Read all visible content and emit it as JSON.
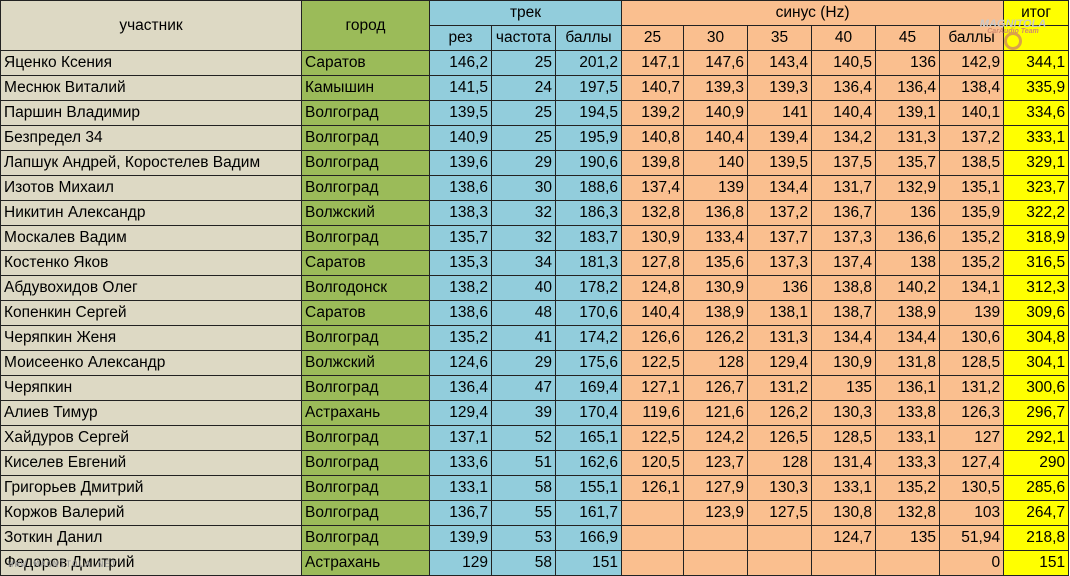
{
  "headers": {
    "participant": "участник",
    "city": "город",
    "track": "трек",
    "sine": "синус (Hz)",
    "total": "итог",
    "track_sub": [
      "рез",
      "частота",
      "баллы"
    ],
    "sine_sub": [
      "25",
      "30",
      "35",
      "40",
      "45",
      "баллы"
    ]
  },
  "rows": [
    {
      "name": "Яценко Ксения",
      "city": "Саратов",
      "track": [
        "146,2",
        "25",
        "201,2"
      ],
      "sine": [
        "147,1",
        "147,6",
        "143,4",
        "140,5",
        "136",
        "142,9"
      ],
      "total": "344,1"
    },
    {
      "name": "Меснюк Виталий",
      "city": "Камышин",
      "track": [
        "141,5",
        "24",
        "197,5"
      ],
      "sine": [
        "140,7",
        "139,3",
        "139,3",
        "136,4",
        "136,4",
        "138,4"
      ],
      "total": "335,9"
    },
    {
      "name": "Паршин Владимир",
      "city": "Волгоград",
      "track": [
        "139,5",
        "25",
        "194,5"
      ],
      "sine": [
        "139,2",
        "140,9",
        "141",
        "140,4",
        "139,1",
        "140,1"
      ],
      "total": "334,6"
    },
    {
      "name": "Безпредел 34",
      "city": "Волгоград",
      "track": [
        "140,9",
        "25",
        "195,9"
      ],
      "sine": [
        "140,8",
        "140,4",
        "139,4",
        "134,2",
        "131,3",
        "137,2"
      ],
      "total": "333,1"
    },
    {
      "name": "Лапшук Андрей, Коростелев Вадим",
      "city": "Волгоград",
      "track": [
        "139,6",
        "29",
        "190,6"
      ],
      "sine": [
        "139,8",
        "140",
        "139,5",
        "137,5",
        "135,7",
        "138,5"
      ],
      "total": "329,1"
    },
    {
      "name": "Изотов Михаил",
      "city": "Волгоград",
      "track": [
        "138,6",
        "30",
        "188,6"
      ],
      "sine": [
        "137,4",
        "139",
        "134,4",
        "131,7",
        "132,9",
        "135,1"
      ],
      "total": "323,7"
    },
    {
      "name": "Никитин Александр",
      "city": "Волжский",
      "track": [
        "138,3",
        "32",
        "186,3"
      ],
      "sine": [
        "132,8",
        "136,8",
        "137,2",
        "136,7",
        "136",
        "135,9"
      ],
      "total": "322,2"
    },
    {
      "name": "Москалев Вадим",
      "city": "Волгоград",
      "track": [
        "135,7",
        "32",
        "183,7"
      ],
      "sine": [
        "130,9",
        "133,4",
        "137,7",
        "137,3",
        "136,6",
        "135,2"
      ],
      "total": "318,9"
    },
    {
      "name": "Костенко Яков",
      "city": "Саратов",
      "track": [
        "135,3",
        "34",
        "181,3"
      ],
      "sine": [
        "127,8",
        "135,6",
        "137,3",
        "137,4",
        "138",
        "135,2"
      ],
      "total": "316,5"
    },
    {
      "name": "Абдувохидов Олег",
      "city": "Волгодонск",
      "track": [
        "138,2",
        "40",
        "178,2"
      ],
      "sine": [
        "124,8",
        "130,9",
        "136",
        "138,8",
        "140,2",
        "134,1"
      ],
      "total": "312,3"
    },
    {
      "name": "Копенкин Сергей",
      "city": "Саратов",
      "track": [
        "138,6",
        "48",
        "170,6"
      ],
      "sine": [
        "140,4",
        "138,9",
        "138,1",
        "138,7",
        "138,9",
        "139"
      ],
      "total": "309,6"
    },
    {
      "name": "Черяпкин Женя",
      "city": "Волгоград",
      "track": [
        "135,2",
        "41",
        "174,2"
      ],
      "sine": [
        "126,6",
        "126,2",
        "131,3",
        "134,4",
        "134,4",
        "130,6"
      ],
      "total": "304,8"
    },
    {
      "name": "Моисеенко Александр",
      "city": "Волжский",
      "track": [
        "124,6",
        "29",
        "175,6"
      ],
      "sine": [
        "122,5",
        "128",
        "129,4",
        "130,9",
        "131,8",
        "128,5"
      ],
      "total": "304,1"
    },
    {
      "name": "Черяпкин",
      "city": "Волгоград",
      "track": [
        "136,4",
        "47",
        "169,4"
      ],
      "sine": [
        "127,1",
        "126,7",
        "131,2",
        "135",
        "136,1",
        "131,2"
      ],
      "total": "300,6"
    },
    {
      "name": "Алиев Тимур",
      "city": "Астрахань",
      "track": [
        "129,4",
        "39",
        "170,4"
      ],
      "sine": [
        "119,6",
        "121,6",
        "126,2",
        "130,3",
        "133,8",
        "126,3"
      ],
      "total": "296,7"
    },
    {
      "name": "Хайдуров Сергей",
      "city": "Волгоград",
      "track": [
        "137,1",
        "52",
        "165,1"
      ],
      "sine": [
        "122,5",
        "124,2",
        "126,5",
        "128,5",
        "133,1",
        "127"
      ],
      "total": "292,1"
    },
    {
      "name": "Киселев Евгений",
      "city": "Волгоград",
      "track": [
        "133,6",
        "51",
        "162,6"
      ],
      "sine": [
        "120,5",
        "123,7",
        "128",
        "131,4",
        "133,3",
        "127,4"
      ],
      "total": "290"
    },
    {
      "name": "Григорьев Дмитрий",
      "city": "Волгоград",
      "track": [
        "133,1",
        "58",
        "155,1"
      ],
      "sine": [
        "126,1",
        "127,9",
        "130,3",
        "133,1",
        "135,2",
        "130,5"
      ],
      "total": "285,6"
    },
    {
      "name": "Коржов Валерий",
      "city": "Волгоград",
      "track": [
        "136,7",
        "55",
        "161,7"
      ],
      "sine": [
        "",
        "123,9",
        "127,5",
        "130,8",
        "132,8",
        "103"
      ],
      "total": "264,7"
    },
    {
      "name": "Зоткин Данил",
      "city": "Волгоград",
      "track": [
        "139,9",
        "53",
        "166,9"
      ],
      "sine": [
        "",
        "",
        "",
        "124,7",
        "135",
        "51,94"
      ],
      "total": "218,8"
    },
    {
      "name": "Федоров Дмитрий",
      "city": "Астрахань",
      "track": [
        "129",
        "58",
        "151"
      ],
      "sine": [
        "",
        "",
        "",
        "",
        "",
        "0"
      ],
      "total": "151"
    }
  ],
  "watermark": "WWW.MAGNITOLA.NET",
  "logo": {
    "title": "MAGNITOLA",
    "subtitle": "CarAudio Team"
  }
}
